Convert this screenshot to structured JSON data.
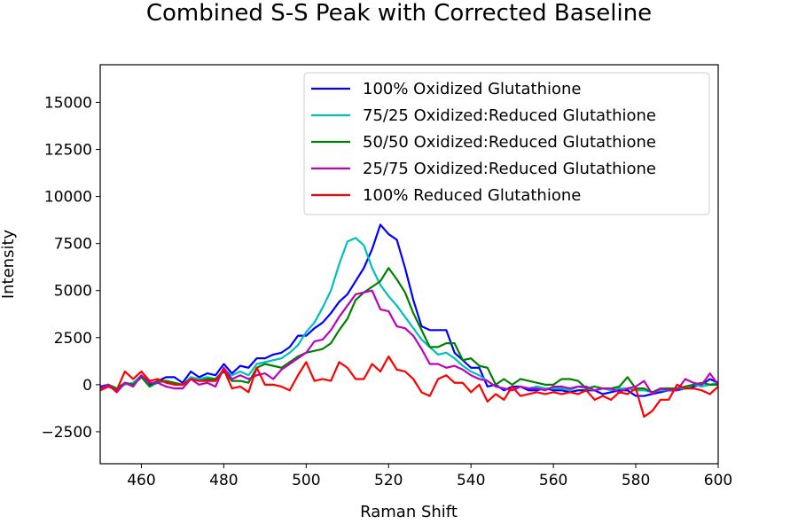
{
  "chart_data": {
    "type": "line",
    "title": "Combined S-S Peak with Corrected Baseline",
    "xlabel": "Raman Shift",
    "ylabel": "Intensity",
    "xlim": [
      450,
      600
    ],
    "ylim": [
      -4200,
      17000
    ],
    "xticks": [
      460,
      480,
      500,
      520,
      540,
      560,
      580,
      600
    ],
    "yticks": [
      -2500,
      0,
      2500,
      5000,
      7500,
      10000,
      12500,
      15000
    ],
    "xtick_labels": [
      "460",
      "480",
      "500",
      "520",
      "540",
      "560",
      "580",
      "600"
    ],
    "ytick_labels": [
      "−2500",
      "0",
      "2500",
      "5000",
      "7500",
      "10000",
      "12500",
      "15000"
    ],
    "legend_position": "top-right",
    "grid": false,
    "series": [
      {
        "name": "100% Oxidized Glutathione",
        "color": "#0000ff",
        "x": [
          450,
          452,
          454,
          456,
          458,
          460,
          462,
          464,
          466,
          468,
          470,
          472,
          474,
          476,
          478,
          480,
          482,
          484,
          486,
          488,
          490,
          492,
          494,
          496,
          498,
          500,
          502,
          504,
          506,
          508,
          510,
          512,
          514,
          516,
          518,
          520,
          522,
          524,
          526,
          528,
          530,
          532,
          534,
          536,
          538,
          540,
          542,
          544,
          546,
          548,
          550,
          552,
          554,
          556,
          558,
          560,
          562,
          564,
          566,
          568,
          570,
          572,
          574,
          576,
          578,
          580,
          582,
          584,
          586,
          588,
          590,
          592,
          594,
          596,
          598,
          600
        ],
        "y": [
          -100,
          0,
          -400,
          100,
          0,
          400,
          0,
          200,
          400,
          400,
          100,
          700,
          400,
          600,
          500,
          1100,
          600,
          1000,
          900,
          1400,
          1400,
          1600,
          1700,
          2000,
          2600,
          2600,
          3000,
          3300,
          3800,
          4400,
          4800,
          5500,
          6200,
          7200,
          8500,
          8000,
          7700,
          6200,
          4500,
          3100,
          2900,
          2900,
          2900,
          1700,
          1300,
          900,
          900,
          -100,
          0,
          -300,
          -100,
          -100,
          -300,
          -300,
          -200,
          -300,
          -300,
          -400,
          -300,
          -300,
          -300,
          -500,
          -400,
          -300,
          -300,
          -600,
          -600,
          -500,
          -400,
          -300,
          -300,
          -200,
          -100,
          0,
          300,
          100
        ]
      },
      {
        "name": "75/25 Oxidized:Reduced Glutathione",
        "color": "#00bfbf",
        "x": [
          450,
          452,
          454,
          456,
          458,
          460,
          462,
          464,
          466,
          468,
          470,
          472,
          474,
          476,
          478,
          480,
          482,
          484,
          486,
          488,
          490,
          492,
          494,
          496,
          498,
          500,
          502,
          504,
          506,
          508,
          510,
          512,
          514,
          516,
          518,
          520,
          522,
          524,
          526,
          528,
          530,
          532,
          534,
          536,
          538,
          540,
          542,
          544,
          546,
          548,
          550,
          552,
          554,
          556,
          558,
          560,
          562,
          564,
          566,
          568,
          570,
          572,
          574,
          576,
          578,
          580,
          582,
          584,
          586,
          588,
          590,
          592,
          594,
          596,
          598,
          600
        ],
        "y": [
          -200,
          0,
          -200,
          0,
          100,
          500,
          -100,
          100,
          200,
          0,
          0,
          400,
          300,
          400,
          300,
          800,
          500,
          700,
          500,
          1100,
          1200,
          1300,
          1400,
          1700,
          2100,
          2800,
          3300,
          4100,
          5000,
          6400,
          7600,
          7800,
          7400,
          6200,
          5300,
          4700,
          4200,
          3600,
          3000,
          2400,
          2000,
          1600,
          1700,
          1400,
          1000,
          700,
          500,
          200,
          -100,
          -200,
          -300,
          -100,
          -200,
          -100,
          -200,
          -200,
          -200,
          -300,
          -100,
          -200,
          -300,
          -200,
          -300,
          -200,
          -200,
          -300,
          -300,
          -400,
          -300,
          -300,
          -200,
          -200,
          0,
          -100,
          0,
          100
        ]
      },
      {
        "name": "50/50 Oxidized:Reduced Glutathione",
        "color": "#008000",
        "x": [
          450,
          452,
          454,
          456,
          458,
          460,
          462,
          464,
          466,
          468,
          470,
          472,
          474,
          476,
          478,
          480,
          482,
          484,
          486,
          488,
          490,
          492,
          494,
          496,
          498,
          500,
          502,
          504,
          506,
          508,
          510,
          512,
          514,
          516,
          518,
          520,
          522,
          524,
          526,
          528,
          530,
          532,
          534,
          536,
          538,
          540,
          542,
          544,
          546,
          548,
          550,
          552,
          554,
          556,
          558,
          560,
          562,
          564,
          566,
          568,
          570,
          572,
          574,
          576,
          578,
          580,
          582,
          584,
          586,
          588,
          590,
          592,
          594,
          596,
          598,
          600
        ],
        "y": [
          -200,
          0,
          -200,
          100,
          0,
          400,
          -100,
          200,
          200,
          100,
          0,
          300,
          200,
          300,
          300,
          700,
          200,
          200,
          100,
          900,
          1100,
          1000,
          900,
          1200,
          1500,
          1700,
          1800,
          1900,
          2200,
          2900,
          3500,
          4500,
          4900,
          5200,
          5500,
          6200,
          5600,
          4900,
          3800,
          2900,
          2000,
          2000,
          2200,
          2200,
          1300,
          1400,
          1000,
          900,
          0,
          300,
          0,
          300,
          200,
          100,
          0,
          0,
          300,
          300,
          200,
          -200,
          -100,
          -200,
          -200,
          -100,
          400,
          -200,
          -200,
          -400,
          -200,
          -200,
          -200,
          -100,
          0,
          100,
          0,
          0
        ]
      },
      {
        "name": "25/75 Oxidized:Reduced Glutathione",
        "color": "#bf00bf",
        "x": [
          450,
          452,
          454,
          456,
          458,
          460,
          462,
          464,
          466,
          468,
          470,
          472,
          474,
          476,
          478,
          480,
          482,
          484,
          486,
          488,
          490,
          492,
          494,
          496,
          498,
          500,
          502,
          504,
          506,
          508,
          510,
          512,
          514,
          516,
          518,
          520,
          522,
          524,
          526,
          528,
          530,
          532,
          534,
          536,
          538,
          540,
          542,
          544,
          546,
          548,
          550,
          552,
          554,
          556,
          558,
          560,
          562,
          564,
          566,
          568,
          570,
          572,
          574,
          576,
          578,
          580,
          582,
          584,
          586,
          588,
          590,
          592,
          594,
          596,
          598,
          600
        ],
        "y": [
          -200,
          0,
          -400,
          100,
          -100,
          500,
          100,
          100,
          -100,
          -200,
          -200,
          300,
          0,
          100,
          -100,
          900,
          300,
          500,
          300,
          500,
          600,
          300,
          800,
          1100,
          1400,
          1700,
          2300,
          2400,
          2900,
          3600,
          4200,
          4800,
          4900,
          5000,
          4000,
          3900,
          3100,
          3000,
          2600,
          1900,
          1100,
          1100,
          900,
          1000,
          800,
          500,
          300,
          200,
          -100,
          -200,
          -300,
          -100,
          -200,
          -200,
          -300,
          -100,
          -100,
          -200,
          -100,
          -100,
          -300,
          -200,
          -200,
          -400,
          -200,
          -100,
          200,
          -500,
          -200,
          -300,
          -300,
          300,
          100,
          0,
          600,
          0
        ]
      },
      {
        "name": "100% Reduced Glutathione",
        "color": "#ff0000",
        "x": [
          450,
          452,
          454,
          456,
          458,
          460,
          462,
          464,
          466,
          468,
          470,
          472,
          474,
          476,
          478,
          480,
          482,
          484,
          486,
          488,
          490,
          492,
          494,
          496,
          498,
          500,
          502,
          504,
          506,
          508,
          510,
          512,
          514,
          516,
          518,
          520,
          522,
          524,
          526,
          528,
          530,
          532,
          534,
          536,
          538,
          540,
          542,
          544,
          546,
          548,
          550,
          552,
          554,
          556,
          558,
          560,
          562,
          564,
          566,
          568,
          570,
          572,
          574,
          576,
          578,
          580,
          582,
          584,
          586,
          588,
          590,
          592,
          594,
          596,
          598,
          600
        ],
        "y": [
          -300,
          -100,
          -300,
          700,
          300,
          700,
          200,
          300,
          100,
          0,
          0,
          300,
          200,
          200,
          200,
          800,
          -200,
          -100,
          -400,
          900,
          0,
          0,
          -100,
          -300,
          500,
          1200,
          200,
          300,
          200,
          1200,
          900,
          300,
          300,
          1100,
          700,
          1500,
          800,
          700,
          300,
          -400,
          -600,
          300,
          500,
          100,
          100,
          -400,
          0,
          -900,
          -500,
          -800,
          -100,
          -600,
          -500,
          -400,
          -500,
          -400,
          -500,
          -400,
          -500,
          -300,
          -800,
          -600,
          -800,
          -400,
          -500,
          -200,
          -1700,
          -1400,
          -800,
          -800,
          0,
          -200,
          -200,
          -300,
          -500,
          -100
        ]
      }
    ]
  }
}
